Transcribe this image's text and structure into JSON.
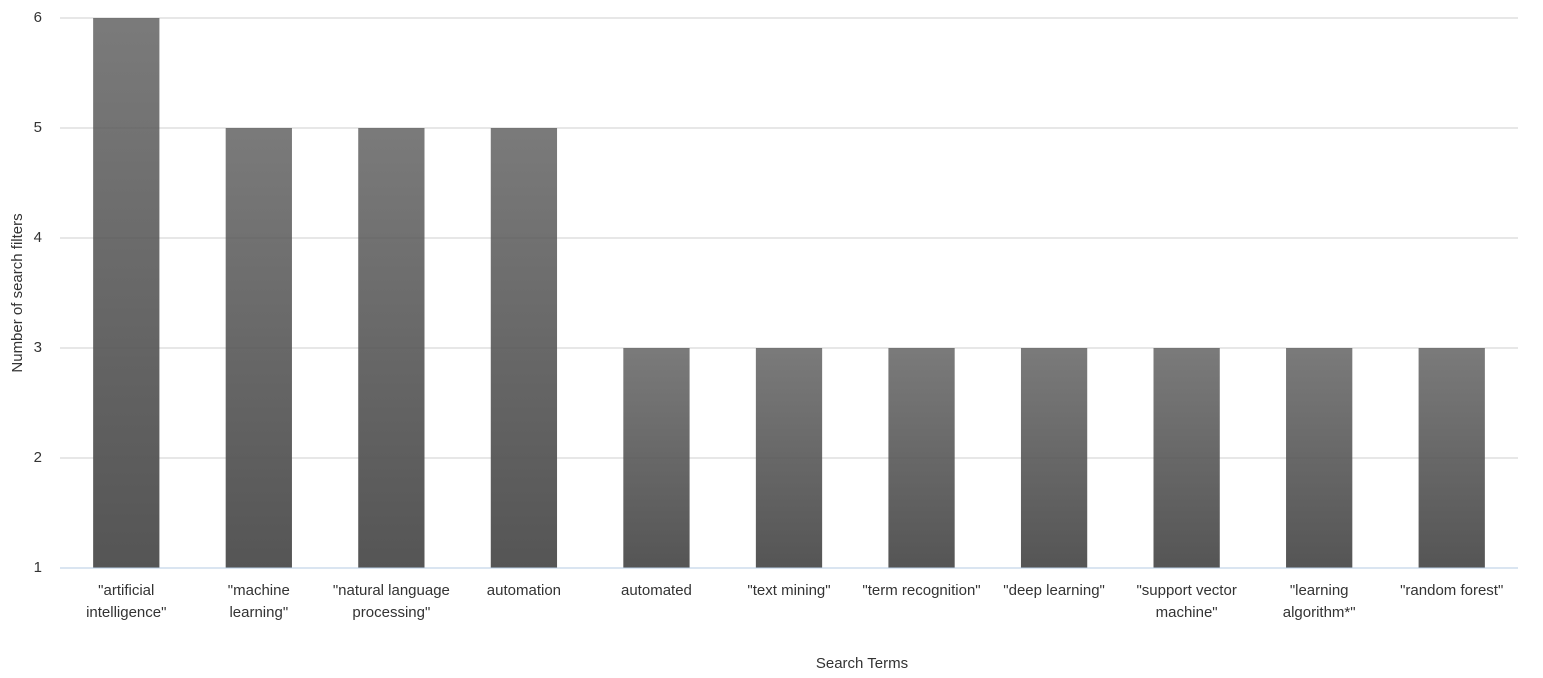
{
  "chart_data": {
    "type": "bar",
    "x_label": "Search Terms",
    "y_label": "Number of search filters",
    "categories": [
      "\"artificial intelligence\"",
      "\"machine learning\"",
      "\"natural language processing\"",
      "automation",
      "automated",
      "\"text mining\"",
      "\"term recognition\"",
      "\"deep learning\"",
      "\"support vector machine\"",
      "\"learning algorithm*\"",
      "\"random forest\""
    ],
    "values": [
      6,
      5,
      5,
      5,
      3,
      3,
      3,
      3,
      3,
      3,
      3
    ],
    "color": "#555555",
    "ylim": [
      1,
      6
    ],
    "yticks": [
      1,
      2,
      3,
      4,
      5,
      6
    ],
    "grid": true
  }
}
